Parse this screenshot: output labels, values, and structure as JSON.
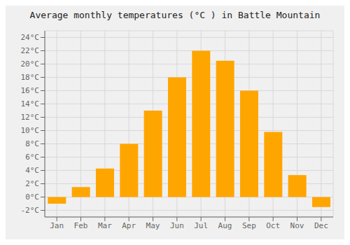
{
  "chart_data": {
    "type": "bar",
    "title": "Average monthly temperatures (°C ) in Battle Mountain",
    "categories": [
      "Jan",
      "Feb",
      "Mar",
      "Apr",
      "May",
      "Jun",
      "Jul",
      "Aug",
      "Sep",
      "Oct",
      "Nov",
      "Dec"
    ],
    "values": [
      -1.0,
      1.5,
      4.3,
      8.0,
      13.0,
      18.0,
      22.0,
      20.5,
      16.0,
      9.8,
      3.3,
      -1.5
    ],
    "color": "#FFA500",
    "ylim": [
      -3,
      25
    ],
    "yticks": [
      {
        "value": -2,
        "label": "-2°C"
      },
      {
        "value": 0,
        "label": "0°C"
      },
      {
        "value": 2,
        "label": "2°C"
      },
      {
        "value": 4,
        "label": "4°C"
      },
      {
        "value": 6,
        "label": "6°C"
      },
      {
        "value": 8,
        "label": "8°C"
      },
      {
        "value": 10,
        "label": "10°C"
      },
      {
        "value": 12,
        "label": "12°C"
      },
      {
        "value": 14,
        "label": "14°C"
      },
      {
        "value": 16,
        "label": "16°C"
      },
      {
        "value": 18,
        "label": "18°C"
      },
      {
        "value": 20,
        "label": "20°C"
      },
      {
        "value": 22,
        "label": "22°C"
      },
      {
        "value": 24,
        "label": "24°C"
      }
    ],
    "grid": true
  }
}
